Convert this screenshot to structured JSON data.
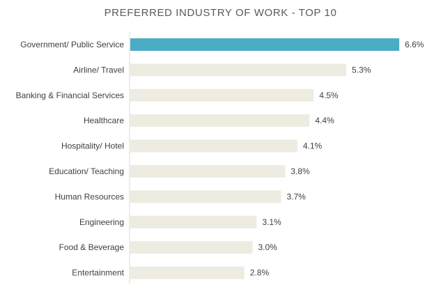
{
  "chart_data": {
    "type": "bar",
    "orientation": "horizontal",
    "title": "PREFERRED INDUSTRY OF WORK - TOP 10",
    "xlabel": "",
    "ylabel": "",
    "xlim": [
      0,
      7
    ],
    "grid": false,
    "legend": "none",
    "categories": [
      "Government/ Public Service",
      "Airline/ Travel",
      "Banking & Financial Services",
      "Healthcare",
      "Hospitality/ Hotel",
      "Education/ Teaching",
      "Human Resources",
      "Engineering",
      "Food & Beverage",
      "Entertainment"
    ],
    "values": [
      6.6,
      5.3,
      4.5,
      4.4,
      4.1,
      3.8,
      3.7,
      3.1,
      3.0,
      2.8
    ],
    "value_labels": [
      "6.6%",
      "5.3%",
      "4.5%",
      "4.4%",
      "4.1%",
      "3.8%",
      "3.7%",
      "3.1%",
      "3.0%",
      "2.8%"
    ],
    "colors": {
      "highlight": "#4bacc6",
      "bar": "#eeece1",
      "axis": "#d9d9d9",
      "text": "#404040",
      "title": "#5a5a5a"
    }
  }
}
